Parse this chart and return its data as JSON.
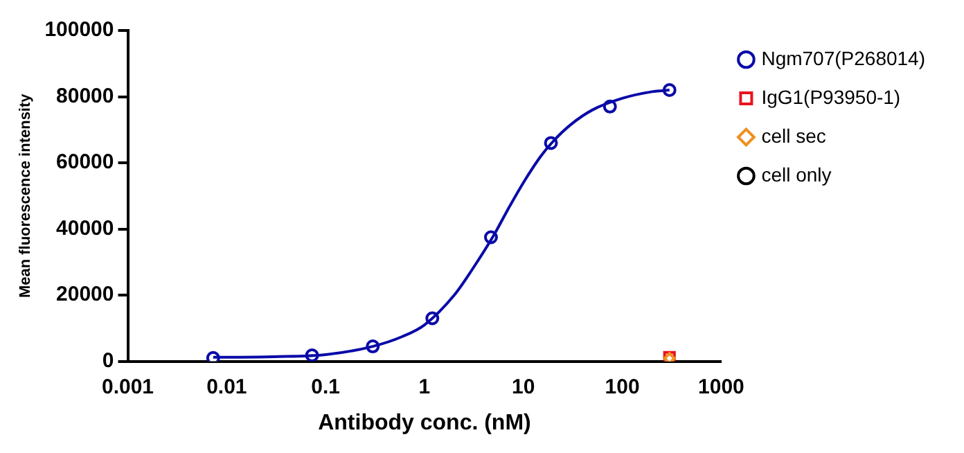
{
  "chart_data": {
    "type": "scatter",
    "xlabel": "Antibody conc. (nM)",
    "ylabel": "Mean fluorescence intensity",
    "log": "x",
    "xlim": [
      0.001,
      1000
    ],
    "xticks": [
      0.001,
      0.01,
      0.1,
      1,
      10,
      100,
      1000
    ],
    "ylim": [
      0,
      100000
    ],
    "yticks": [
      0,
      20000,
      40000,
      60000,
      80000,
      100000
    ],
    "grid": false,
    "legend": "right",
    "series": [
      {
        "name": "Ngm707(P268014)",
        "marker": "circle",
        "color": "#0a0aa8",
        "x": [
          0.0073,
          0.073,
          0.3,
          1.2,
          4.7,
          19,
          75,
          300
        ],
        "values": [
          1000,
          1800,
          4500,
          13000,
          37500,
          66000,
          77000,
          82000
        ]
      },
      {
        "type": "line",
        "marker": "none",
        "color": "#0a0aa8",
        "x": [
          0.0073,
          0.03,
          0.1,
          0.3,
          0.6,
          1,
          2,
          3,
          5,
          7,
          10,
          15,
          20,
          30,
          50,
          100,
          200,
          300
        ],
        "values": [
          1200,
          1400,
          2000,
          4500,
          7500,
          11000,
          20000,
          27500,
          38000,
          46000,
          54000,
          62000,
          66500,
          71500,
          76000,
          79500,
          81500,
          82000
        ]
      },
      {
        "name": "IgG1(P93950-1)",
        "marker": "square",
        "color": "#e8141c",
        "x": [
          300
        ],
        "values": [
          1200
        ]
      },
      {
        "name": "cell sec",
        "marker": "diamond",
        "color": "#f0901e",
        "x": [
          300
        ],
        "values": [
          900
        ]
      },
      {
        "name": "cell only",
        "marker": "circle",
        "color": "#000000",
        "x": [
          null
        ],
        "values": [
          null
        ]
      }
    ]
  }
}
